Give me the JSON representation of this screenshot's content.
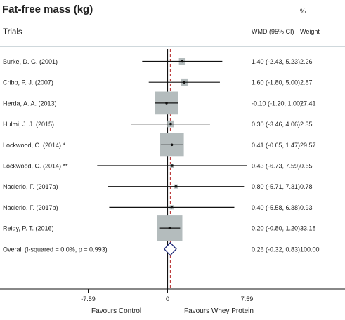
{
  "chart_data": {
    "type": "forest",
    "title": "Fat-free mass (kg)",
    "col_trials": "Trials",
    "col_effect": "WMD (95% CI)",
    "col_weight_top": "%",
    "col_weight": "Weight",
    "xlim": [
      -7.59,
      7.59
    ],
    "xticks": [
      -7.59,
      0,
      7.59
    ],
    "xtick_labels": [
      "-7.59",
      "0",
      "7.59"
    ],
    "xlabel_left": "Favours Control",
    "xlabel_right": "Favours Whey Protein",
    "studies": [
      {
        "name": "Burke, D. G. (2001)",
        "est": 1.4,
        "lo": -2.43,
        "hi": 5.23,
        "ci_text": "1.40 (-2.43, 5.23)",
        "weight": "2.26"
      },
      {
        "name": "Cribb, P. J. (2007)",
        "est": 1.6,
        "lo": -1.8,
        "hi": 5.0,
        "ci_text": "1.60 (-1.80, 5.00)",
        "weight": "2.87"
      },
      {
        "name": "Herda, A. A. (2013)",
        "est": -0.1,
        "lo": -1.2,
        "hi": 1.0,
        "ci_text": "-0.10 (-1.20, 1.00)",
        "weight": "27.41"
      },
      {
        "name": "Hulmi, J. J. (2015)",
        "est": 0.3,
        "lo": -3.46,
        "hi": 4.06,
        "ci_text": "0.30 (-3.46, 4.06)",
        "weight": "2.35"
      },
      {
        "name": "Lockwood, C. (2014) *",
        "est": 0.41,
        "lo": -0.65,
        "hi": 1.47,
        "ci_text": "0.41 (-0.65, 1.47)",
        "weight": "29.57"
      },
      {
        "name": "Lockwood, C. (2014) **",
        "est": 0.43,
        "lo": -6.73,
        "hi": 7.59,
        "ci_text": "0.43 (-6.73, 7.59)",
        "weight": "0.65"
      },
      {
        "name": "Naclerio, F. (2017a)",
        "est": 0.8,
        "lo": -5.71,
        "hi": 7.31,
        "ci_text": "0.80 (-5.71, 7.31)",
        "weight": "0.78"
      },
      {
        "name": "Naclerio, F. (2017b)",
        "est": 0.4,
        "lo": -5.58,
        "hi": 6.38,
        "ci_text": "0.40 (-5.58, 6.38)",
        "weight": "0.93"
      },
      {
        "name": "Reidy, P. T. (2016)",
        "est": 0.2,
        "lo": -0.8,
        "hi": 1.2,
        "ci_text": "0.20 (-0.80, 1.20)",
        "weight": "33.18"
      }
    ],
    "overall": {
      "name": "Overall  (I-squared = 0.0%, p = 0.993)",
      "est": 0.26,
      "lo": -0.32,
      "hi": 0.83,
      "ci_text": "0.26 (-0.32, 0.83)",
      "weight": "100.00"
    },
    "colors": {
      "box": "#b4bcbd",
      "line": "#111111",
      "diamond": "#1f2a7a",
      "dashed": "#b22222",
      "rule": "#9fb2b8"
    }
  }
}
